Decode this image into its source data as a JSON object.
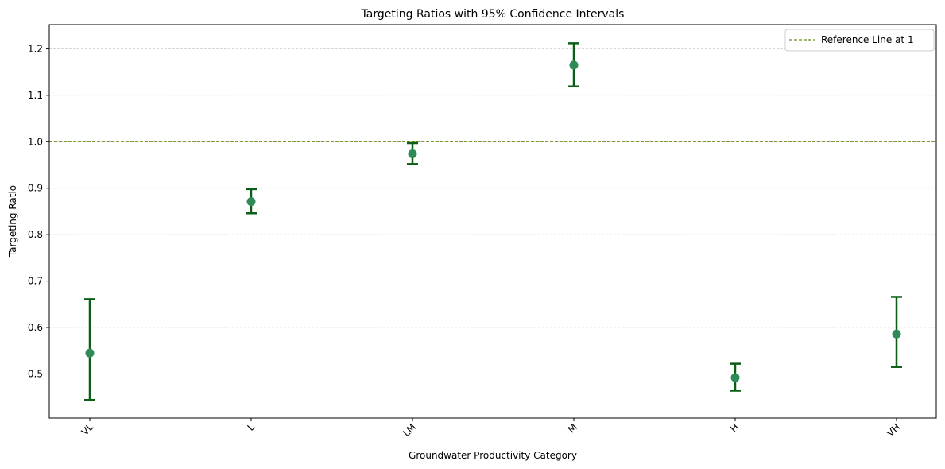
{
  "chart_data": {
    "type": "scatter",
    "title": "Targeting Ratios with 95% Confidence Intervals",
    "xlabel": "Groundwater Productivity Category",
    "ylabel": "Targeting Ratio",
    "categories": [
      "VL",
      "L",
      "LM",
      "M",
      "H",
      "VH"
    ],
    "values": [
      0.545,
      0.871,
      0.974,
      1.165,
      0.492,
      0.586
    ],
    "ci_lower": [
      0.444,
      0.846,
      0.952,
      1.119,
      0.464,
      0.515
    ],
    "ci_upper": [
      0.661,
      0.898,
      0.997,
      1.212,
      0.522,
      0.666
    ],
    "ylim": [
      0.405,
      1.252
    ],
    "yticks": [
      "0.5",
      "0.6",
      "0.7",
      "0.8",
      "0.9",
      "1.0",
      "1.1",
      "1.2"
    ],
    "reference_line": {
      "value": 1.0,
      "label": "Reference Line at 1",
      "color": "#6b8e23"
    },
    "marker_color": "#2e8b57",
    "errorbar_color": "#0b5e16",
    "grid": "y",
    "legend_position": "top-right"
  }
}
